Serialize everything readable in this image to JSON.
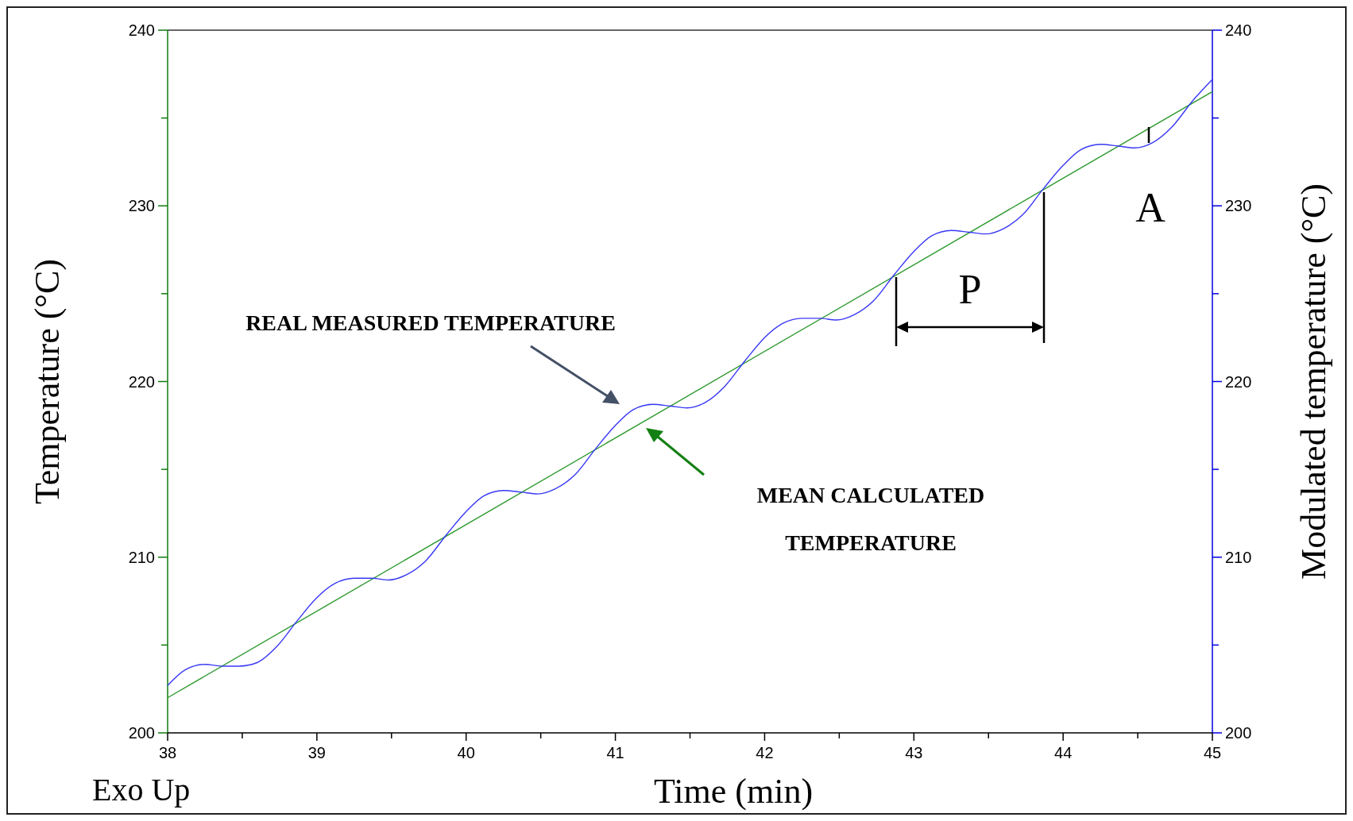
{
  "chart_data": {
    "type": "line",
    "xlabel": "Time (min)",
    "ylabel": "Temperature (°C)",
    "y2label": "Modulated temperature (°C)",
    "xlim": [
      38,
      45
    ],
    "xticks": [
      38,
      {
        "value": 38.5,
        "label": null
      },
      39,
      {
        "value": 39.5,
        "label": null
      },
      40,
      {
        "value": 40.5,
        "label": null
      },
      41,
      {
        "value": 41.5,
        "label": null
      },
      42,
      {
        "value": 42.5,
        "label": null
      },
      43,
      {
        "value": 43.5,
        "label": null
      },
      44,
      {
        "value": 44.5,
        "label": null
      },
      45
    ],
    "ylim": [
      200,
      240
    ],
    "yticks": [
      200,
      {
        "value": 205,
        "label": null
      },
      210,
      {
        "value": 215,
        "label": null
      },
      220,
      {
        "value": 225,
        "label": null
      },
      230,
      {
        "value": 235,
        "label": null
      },
      240
    ],
    "y2lim": [
      200,
      240
    ],
    "y2ticks": [
      200,
      {
        "value": 205,
        "label": null
      },
      210,
      {
        "value": 215,
        "label": null
      },
      220,
      {
        "value": 225,
        "label": null
      },
      230,
      {
        "value": 235,
        "label": null
      },
      240
    ],
    "series": [
      {
        "color": "#2e9a2e",
        "x": [
          38,
          45
        ],
        "values": [
          202,
          236.5
        ]
      },
      {
        "color": "#3838f5",
        "axis": "y2",
        "x": [
          38,
          38.12,
          38.25,
          38.37,
          38.48,
          38.6,
          38.73,
          38.87,
          39,
          39.12,
          39.25,
          39.37,
          39.48,
          39.6,
          39.73,
          39.87,
          40,
          40.12,
          40.25,
          40.37,
          40.48,
          40.6,
          40.73,
          40.87,
          41,
          41.12,
          41.25,
          41.37,
          41.48,
          41.6,
          41.73,
          41.87,
          42,
          42.12,
          42.25,
          42.37,
          42.48,
          42.6,
          42.73,
          42.87,
          43,
          43.12,
          43.25,
          43.37,
          43.48,
          43.6,
          43.73,
          43.87,
          44,
          44.12,
          44.25,
          44.37,
          44.48,
          44.6,
          44.73,
          44.87,
          45
        ],
        "values": [
          202.7,
          203.6,
          203.9,
          203.8,
          203.8,
          204.0,
          204.9,
          206.4,
          207.7,
          208.5,
          208.8,
          208.8,
          208.7,
          209.0,
          209.8,
          211.3,
          212.6,
          213.5,
          213.8,
          213.7,
          213.6,
          213.9,
          214.7,
          216.2,
          217.5,
          218.4,
          218.7,
          218.6,
          218.5,
          218.8,
          219.7,
          221.2,
          222.5,
          223.3,
          223.6,
          223.6,
          223.5,
          223.8,
          224.6,
          226.1,
          227.4,
          228.3,
          228.6,
          228.5,
          228.4,
          228.7,
          229.5,
          231.0,
          232.3,
          233.2,
          233.5,
          233.4,
          233.3,
          233.6,
          234.5,
          236.0,
          237.2
        ]
      }
    ],
    "annotations": [
      "REAL MEASURED TEMPERATURE",
      "MEAN CALCULATED TEMPERATURE",
      "P",
      "A",
      "Exo Up"
    ],
    "grid": false,
    "marker": "none",
    "line_style": "solid"
  }
}
